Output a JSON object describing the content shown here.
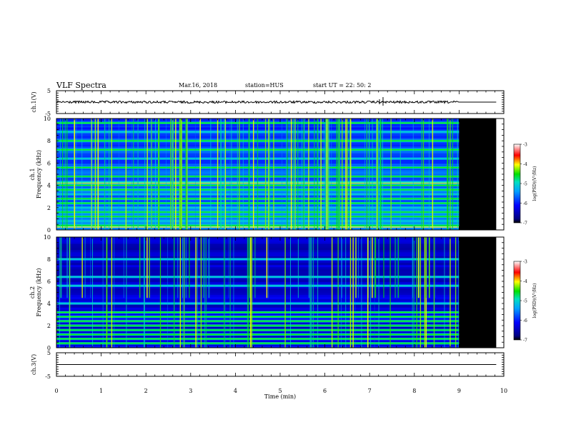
{
  "header": {
    "title": "VLF Spectra",
    "date": "Mar.16, 2018",
    "station": "station=HUS",
    "start": "start  UT  =   22: 50: 2"
  },
  "chart_data": [
    {
      "type": "line",
      "panel": "ch1-waveform",
      "ylabel": "ch.1(V)",
      "ylim": [
        -5,
        5
      ],
      "yticks": [
        "5",
        "-5"
      ],
      "xlim": [
        0,
        10
      ],
      "series": [
        {
          "name": "ch.1",
          "x": [
            0,
            9.83
          ],
          "values": [
            0,
            0
          ]
        }
      ],
      "spikes_at_min": [
        7.3
      ]
    },
    {
      "type": "heatmap",
      "panel": "ch1-spectrogram",
      "ylabel": "ch.1 Frequency (kHz)",
      "ylim": [
        0,
        10
      ],
      "yticks": [
        "0",
        "2",
        "4",
        "6",
        "8",
        "10"
      ],
      "xlim": [
        0,
        10
      ],
      "data_end_min": 9.0,
      "blank_end_min": 9.83,
      "colorbar": {
        "label": "log(PSD)(V²/Hz)",
        "ticks": [
          "-3",
          "-4",
          "-5",
          "-6",
          "-7"
        ],
        "range": [
          -7,
          -3
        ]
      },
      "bands_khz": [
        0.4,
        0.8,
        1.2,
        1.6,
        2.0,
        2.4,
        2.8,
        3.2,
        3.6,
        4.0,
        4.3,
        4.8,
        5.6,
        6.4,
        7.2,
        8.0,
        8.8,
        9.6
      ],
      "mean_level_low_khz": -5.5,
      "mean_level_high_khz": -5.9
    },
    {
      "type": "heatmap",
      "panel": "ch2-spectrogram",
      "ylabel": "ch.2 Frequency (kHz)",
      "ylim": [
        0,
        10
      ],
      "yticks": [
        "0",
        "2",
        "4",
        "6",
        "8",
        "10"
      ],
      "xlim": [
        0,
        10
      ],
      "data_end_min": 9.0,
      "blank_end_min": 9.83,
      "colorbar": {
        "label": "log(PSD)(V²/Hz)",
        "ticks": [
          "-3",
          "-4",
          "-5",
          "-6",
          "-7"
        ],
        "range": [
          -7,
          -3
        ]
      },
      "bands_khz": [
        0.4,
        0.8,
        1.2,
        1.6,
        2.0,
        2.4,
        2.8,
        3.2,
        4.0,
        5.6,
        6.4,
        8.0
      ],
      "mean_level_low_khz": -6.2,
      "mean_level_high_khz": -6.4
    },
    {
      "type": "line",
      "panel": "ch3-waveform",
      "ylabel": "ch.3(V)",
      "ylim": [
        -5,
        5
      ],
      "yticks": [
        "5",
        "-5"
      ],
      "xlim": [
        0,
        10
      ],
      "xlabel": "Time (min)",
      "xticks": [
        "0",
        "1",
        "2",
        "3",
        "4",
        "5",
        "6",
        "7",
        "8",
        "9",
        "10"
      ],
      "series": [
        {
          "name": "ch.3",
          "x": [
            0,
            9.83
          ],
          "values": [
            0,
            0
          ]
        }
      ]
    }
  ]
}
